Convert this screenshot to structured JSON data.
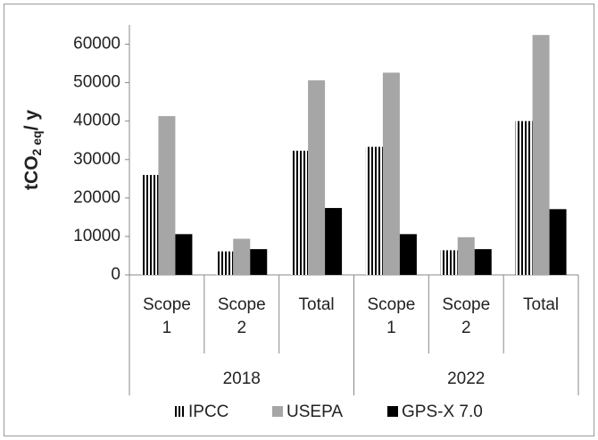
{
  "chart_data": {
    "type": "bar",
    "y_label": {
      "text": "tCO",
      "sub": "2 eq",
      "tail": "/ y"
    },
    "groups": [
      {
        "name": "2018",
        "categories": [
          "Scope 1",
          "Scope 2",
          "Total"
        ]
      },
      {
        "name": "2022",
        "categories": [
          "Scope 1",
          "Scope 2",
          "Total"
        ]
      }
    ],
    "series": [
      {
        "name": "IPCC",
        "color": "#000000",
        "hatch": "vertical",
        "values": [
          26000,
          6100,
          32300,
          33300,
          6400,
          40000
        ]
      },
      {
        "name": "USEPA",
        "color": "#a6a6a6",
        "values": [
          41300,
          9400,
          50600,
          52600,
          9800,
          62400
        ]
      },
      {
        "name": "GPS-X 7.0",
        "color": "#000000",
        "values": [
          10600,
          6700,
          17400,
          10600,
          6700,
          17100
        ]
      }
    ],
    "ylim": [
      0,
      65000
    ],
    "yticks": [
      0,
      10000,
      20000,
      30000,
      40000,
      50000,
      60000
    ],
    "legend": "bottom"
  }
}
